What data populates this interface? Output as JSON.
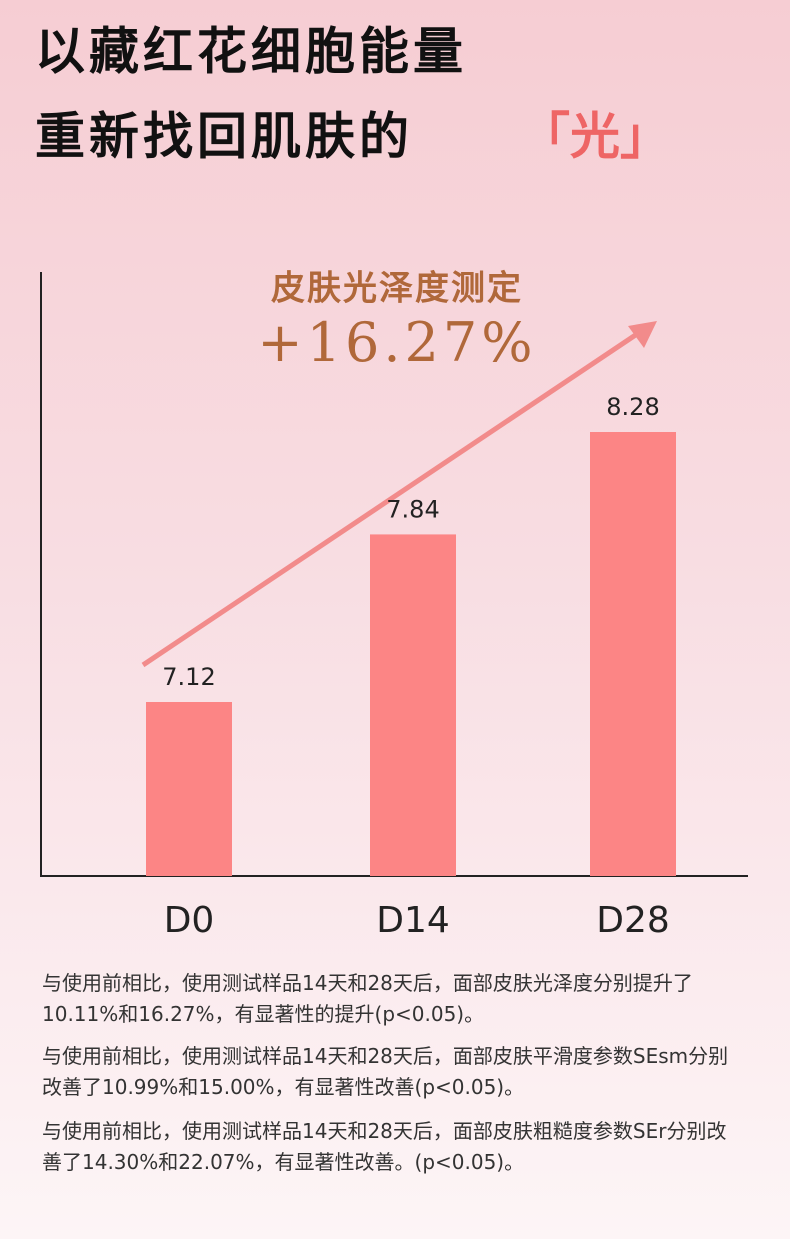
{
  "chart_data": {
    "type": "bar",
    "title_line1": "以藏红花细胞能量",
    "title_line2": "重新找回肌肤的",
    "title_highlight": "「光」",
    "annotation_title": "皮肤光泽度测定",
    "annotation_value": "+16.27%",
    "categories": [
      "D0",
      "D14",
      "D28"
    ],
    "values": [
      7.12,
      7.84,
      8.28
    ],
    "color": "#fc8585",
    "notes": [
      "与使用前相比，使用测试样品14天和28天后，面部皮肤光泽度分别提升了10.11%和16.27%，有显著性的提升(p<0.05)。",
      "与使用前相比，使用测试样品14天和28天后，面部皮肤平滑度参数SEsm分别改善了10.99%和15.00%，有显著性改善(p<0.05)。",
      "与使用前相比，使用测试样品14天和28天后，面部皮肤粗糙度参数SEr分别改善了14.30%和22.07%，有显著性改善。(p<0.05)。"
    ]
  }
}
